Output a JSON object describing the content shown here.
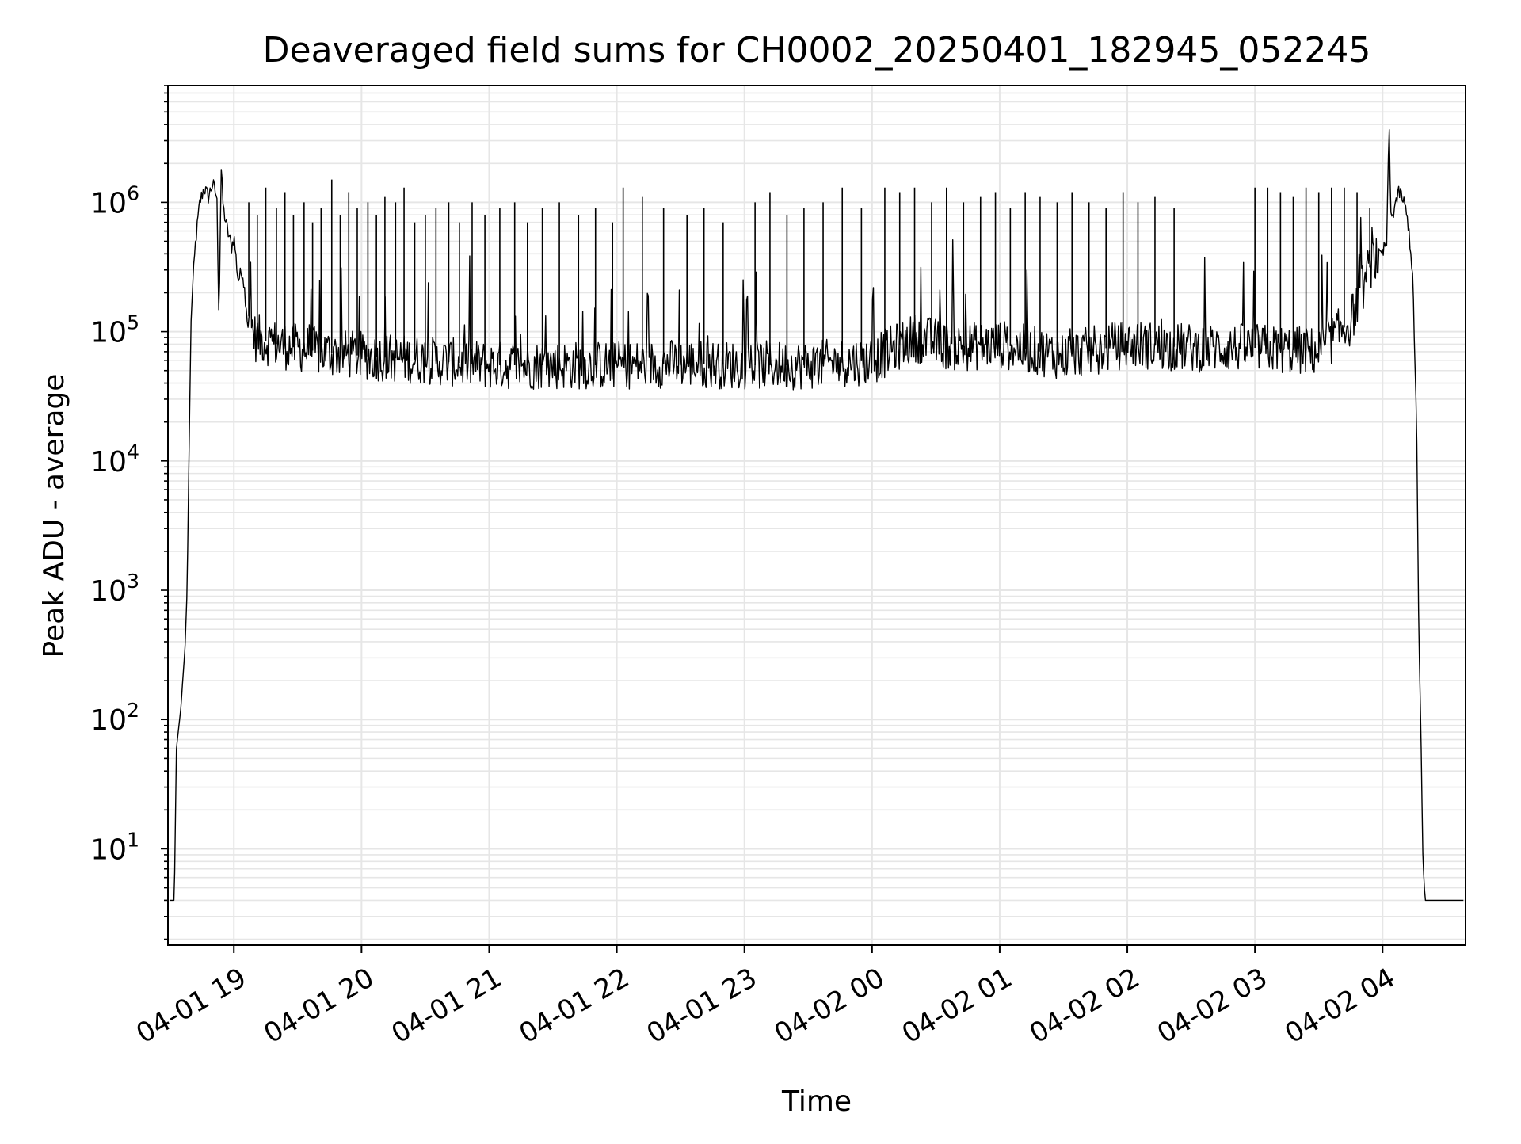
{
  "chart_data": {
    "type": "line",
    "title": "Deaveraged field sums for CH0002_20250401_182945_052245",
    "xlabel": "Time",
    "ylabel": "Peak ADU - average",
    "x_scale": "time",
    "y_scale": "log",
    "xlim": [
      "2025-04-01 18:29",
      "2025-04-02 04:39"
    ],
    "ylim": [
      1.8,
      8000000
    ],
    "x_ticks": [
      {
        "value": "2025-04-01 19:00",
        "label": "04-01 19"
      },
      {
        "value": "2025-04-01 20:00",
        "label": "04-01 20"
      },
      {
        "value": "2025-04-01 21:00",
        "label": "04-01 21"
      },
      {
        "value": "2025-04-01 22:00",
        "label": "04-01 22"
      },
      {
        "value": "2025-04-01 23:00",
        "label": "04-01 23"
      },
      {
        "value": "2025-04-02 00:00",
        "label": "04-02 00"
      },
      {
        "value": "2025-04-02 01:00",
        "label": "04-02 01"
      },
      {
        "value": "2025-04-02 02:00",
        "label": "04-02 02"
      },
      {
        "value": "2025-04-02 03:00",
        "label": "04-02 03"
      },
      {
        "value": "2025-04-02 04:00",
        "label": "04-02 04"
      }
    ],
    "y_ticks": [
      {
        "value": 10,
        "label": "10",
        "exp": "1"
      },
      {
        "value": 100,
        "label": "10",
        "exp": "2"
      },
      {
        "value": 1000,
        "label": "10",
        "exp": "3"
      },
      {
        "value": 10000,
        "label": "10",
        "exp": "4"
      },
      {
        "value": 100000,
        "label": "10",
        "exp": "5"
      },
      {
        "value": 1000000,
        "label": "10",
        "exp": "6"
      }
    ],
    "grid": true,
    "minor_grid": true,
    "line_color": "#000000",
    "grid_color": "#e6e6e6",
    "series": [
      {
        "points": [
          [
            "2025-04-01 18:29:45",
            4
          ],
          [
            "2025-04-01 18:32",
            4
          ],
          [
            "2025-04-01 18:33",
            60
          ],
          [
            "2025-04-01 18:35",
            120
          ],
          [
            "2025-04-01 18:37",
            350
          ],
          [
            "2025-04-01 18:38",
            1000
          ],
          [
            "2025-04-01 18:39",
            15000
          ],
          [
            "2025-04-01 18:40",
            150000
          ],
          [
            "2025-04-01 18:42",
            500000
          ],
          [
            "2025-04-01 18:44",
            1000000
          ],
          [
            "2025-04-01 18:46",
            1300000
          ],
          [
            "2025-04-01 18:48",
            1100000
          ],
          [
            "2025-04-01 18:50",
            1400000
          ],
          [
            "2025-04-01 18:52",
            1100000
          ],
          [
            "2025-04-01 18:53",
            120000
          ],
          [
            "2025-04-01 18:54",
            1900000
          ],
          [
            "2025-04-01 18:55",
            900000
          ],
          [
            "2025-04-01 18:57",
            600000
          ],
          [
            "2025-04-01 18:59",
            450000
          ],
          [
            "2025-04-01 19:00",
            550000
          ],
          [
            "2025-04-01 19:02",
            250000
          ],
          [
            "2025-04-01 19:04",
            300000
          ],
          [
            "2025-04-01 19:06",
            150000
          ],
          [
            "2025-04-01 19:10",
            90000
          ],
          [
            "2025-04-01 19:20",
            80000
          ],
          [
            "2025-04-01 19:40",
            70000
          ],
          [
            "2025-04-01 20:00",
            65000
          ],
          [
            "2025-04-01 20:30",
            60000
          ],
          [
            "2025-04-01 21:00",
            55000
          ],
          [
            "2025-04-01 21:30",
            55000
          ],
          [
            "2025-04-01 22:00",
            55000
          ],
          [
            "2025-04-01 22:30",
            57000
          ],
          [
            "2025-04-01 23:00",
            55000
          ],
          [
            "2025-04-01 23:30",
            55000
          ],
          [
            "2025-04-02 00:00",
            60000
          ],
          [
            "2025-04-02 00:20",
            90000
          ],
          [
            "2025-04-02 00:40",
            75000
          ],
          [
            "2025-04-02 01:00",
            80000
          ],
          [
            "2025-04-02 01:30",
            65000
          ],
          [
            "2025-04-02 02:00",
            80000
          ],
          [
            "2025-04-02 02:30",
            75000
          ],
          [
            "2025-04-02 03:00",
            75000
          ],
          [
            "2025-04-02 03:30",
            70000
          ],
          [
            "2025-04-02 03:45",
            120000
          ],
          [
            "2025-04-02 03:55",
            350000
          ],
          [
            "2025-04-02 04:00",
            400000
          ],
          [
            "2025-04-02 04:02",
            500000
          ],
          [
            "2025-04-02 04:03",
            4000000
          ],
          [
            "2025-04-02 04:04",
            700000
          ],
          [
            "2025-04-02 04:06",
            1000000
          ],
          [
            "2025-04-02 04:08",
            1200000
          ],
          [
            "2025-04-02 04:10",
            1000000
          ],
          [
            "2025-04-02 04:12",
            700000
          ],
          [
            "2025-04-02 04:14",
            300000
          ],
          [
            "2025-04-02 04:16",
            20000
          ],
          [
            "2025-04-02 04:17",
            500
          ],
          [
            "2025-04-02 04:18",
            80
          ],
          [
            "2025-04-02 04:19",
            8
          ],
          [
            "2025-04-02 04:20",
            4
          ],
          [
            "2025-04-02 04:38",
            4
          ]
        ]
      }
    ],
    "spikes": [
      [
        "2025-04-01 19:07",
        1000000
      ],
      [
        "2025-04-01 19:11",
        800000
      ],
      [
        "2025-04-01 19:15",
        1300000
      ],
      [
        "2025-04-01 19:20",
        900000
      ],
      [
        "2025-04-01 19:24",
        1200000
      ],
      [
        "2025-04-01 19:28",
        800000
      ],
      [
        "2025-04-01 19:33",
        1000000
      ],
      [
        "2025-04-01 19:37",
        700000
      ],
      [
        "2025-04-01 19:41",
        900000
      ],
      [
        "2025-04-01 19:46",
        1500000
      ],
      [
        "2025-04-01 19:50",
        800000
      ],
      [
        "2025-04-01 19:54",
        1200000
      ],
      [
        "2025-04-01 19:58",
        900000
      ],
      [
        "2025-04-01 20:03",
        1000000
      ],
      [
        "2025-04-01 20:07",
        800000
      ],
      [
        "2025-04-01 20:11",
        1100000
      ],
      [
        "2025-04-01 20:16",
        1000000
      ],
      [
        "2025-04-01 20:20",
        1300000
      ],
      [
        "2025-04-01 20:25",
        700000
      ],
      [
        "2025-04-01 20:30",
        800000
      ],
      [
        "2025-04-01 20:35",
        900000
      ],
      [
        "2025-04-01 20:41",
        1000000
      ],
      [
        "2025-04-01 20:46",
        700000
      ],
      [
        "2025-04-01 20:52",
        1000000
      ],
      [
        "2025-04-01 20:58",
        800000
      ],
      [
        "2025-04-01 21:05",
        900000
      ],
      [
        "2025-04-01 21:12",
        1000000
      ],
      [
        "2025-04-01 21:18",
        700000
      ],
      [
        "2025-04-01 21:25",
        900000
      ],
      [
        "2025-04-01 21:33",
        1000000
      ],
      [
        "2025-04-01 21:42",
        800000
      ],
      [
        "2025-04-01 21:50",
        900000
      ],
      [
        "2025-04-01 21:58",
        700000
      ],
      [
        "2025-04-01 22:03",
        1300000
      ],
      [
        "2025-04-01 22:12",
        1100000
      ],
      [
        "2025-04-01 22:22",
        900000
      ],
      [
        "2025-04-01 22:33",
        800000
      ],
      [
        "2025-04-01 22:41",
        900000
      ],
      [
        "2025-04-01 22:50",
        700000
      ],
      [
        "2025-04-01 23:05",
        1000000
      ],
      [
        "2025-04-01 23:12",
        1200000
      ],
      [
        "2025-04-01 23:20",
        800000
      ],
      [
        "2025-04-01 23:28",
        900000
      ],
      [
        "2025-04-01 23:37",
        1000000
      ],
      [
        "2025-04-01 23:46",
        1300000
      ],
      [
        "2025-04-01 23:55",
        900000
      ],
      [
        "2025-04-02 00:06",
        1300000
      ],
      [
        "2025-04-02 00:13",
        1200000
      ],
      [
        "2025-04-02 00:20",
        1300000
      ],
      [
        "2025-04-02 00:28",
        1000000
      ],
      [
        "2025-04-02 00:35",
        1300000
      ],
      [
        "2025-04-02 00:43",
        1000000
      ],
      [
        "2025-04-02 00:51",
        1100000
      ],
      [
        "2025-04-02 00:58",
        1200000
      ],
      [
        "2025-04-02 01:05",
        900000
      ],
      [
        "2025-04-02 01:12",
        1200000
      ],
      [
        "2025-04-02 01:19",
        1100000
      ],
      [
        "2025-04-02 01:27",
        1000000
      ],
      [
        "2025-04-02 01:34",
        1200000
      ],
      [
        "2025-04-02 01:42",
        1000000
      ],
      [
        "2025-04-02 01:50",
        900000
      ],
      [
        "2025-04-02 01:58",
        1200000
      ],
      [
        "2025-04-02 02:05",
        1000000
      ],
      [
        "2025-04-02 02:13",
        1100000
      ],
      [
        "2025-04-02 02:22",
        900000
      ],
      [
        "2025-04-02 03:00",
        1300000
      ],
      [
        "2025-04-02 03:06",
        1300000
      ],
      [
        "2025-04-02 03:12",
        1200000
      ],
      [
        "2025-04-02 03:18",
        1100000
      ],
      [
        "2025-04-02 03:24",
        1300000
      ],
      [
        "2025-04-02 03:30",
        1200000
      ],
      [
        "2025-04-02 03:36",
        1300000
      ],
      [
        "2025-04-02 03:42",
        1300000
      ],
      [
        "2025-04-02 03:48",
        1200000
      ],
      [
        "2025-04-02 03:54",
        900000
      ]
    ]
  }
}
